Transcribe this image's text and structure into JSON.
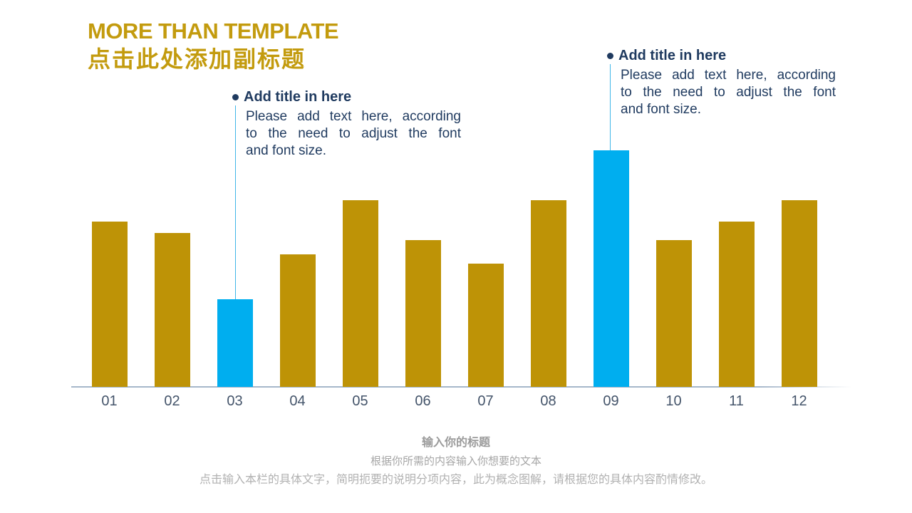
{
  "header": {
    "title": "MORE THAN TEMPLATE",
    "subtitle": "点击此处添加副标题"
  },
  "callouts": [
    {
      "title": "Add title in here",
      "body": "Please add text here, according to the need to adjust the font and font size.",
      "body_lines": [
        "Please add text here, according",
        "to the need to adjust the font",
        "and font size."
      ]
    },
    {
      "title": "Add title in here",
      "body": "Please add text here, according to the need to adjust the font and font size.",
      "body_lines": [
        "Please add text here, according",
        "to the need to adjust the font",
        "and font size."
      ]
    }
  ],
  "chart_data": {
    "type": "bar",
    "categories": [
      "01",
      "02",
      "03",
      "04",
      "05",
      "06",
      "07",
      "08",
      "09",
      "10",
      "11",
      "12"
    ],
    "values": [
      70,
      65,
      37,
      56,
      79,
      62,
      52,
      79,
      100,
      62,
      70,
      79
    ],
    "title": "",
    "xlabel": "",
    "ylabel": "",
    "ylim": [
      0,
      100
    ],
    "grid": false,
    "legend": false,
    "axis_labels_visible": "x-only",
    "bar_color": "#BE9306",
    "highlight_color": "#00AEEF",
    "highlighted_indices": [
      2,
      8
    ]
  },
  "footer": {
    "title": "输入你的标题",
    "text": "根据你所需的内容输入你想要的文本",
    "note": "点击输入本栏的具体文字，简明扼要的说明分项内容，此为概念图解，请根据您的具体内容酌情修改。"
  },
  "colors": {
    "accent_gold": "#C39B0E",
    "bar_gold": "#BE9306",
    "bar_cyan": "#00AEEF",
    "navy_text": "#1F3A5F",
    "connector_cyan": "#41B6E8",
    "axis_line": "#A6B7CA",
    "axis_label": "#44546A",
    "footer_title_gray": "#9B9B9B",
    "footer_text_gray": "#A6A6A6",
    "footer_note_gray": "#B1B1B1"
  }
}
